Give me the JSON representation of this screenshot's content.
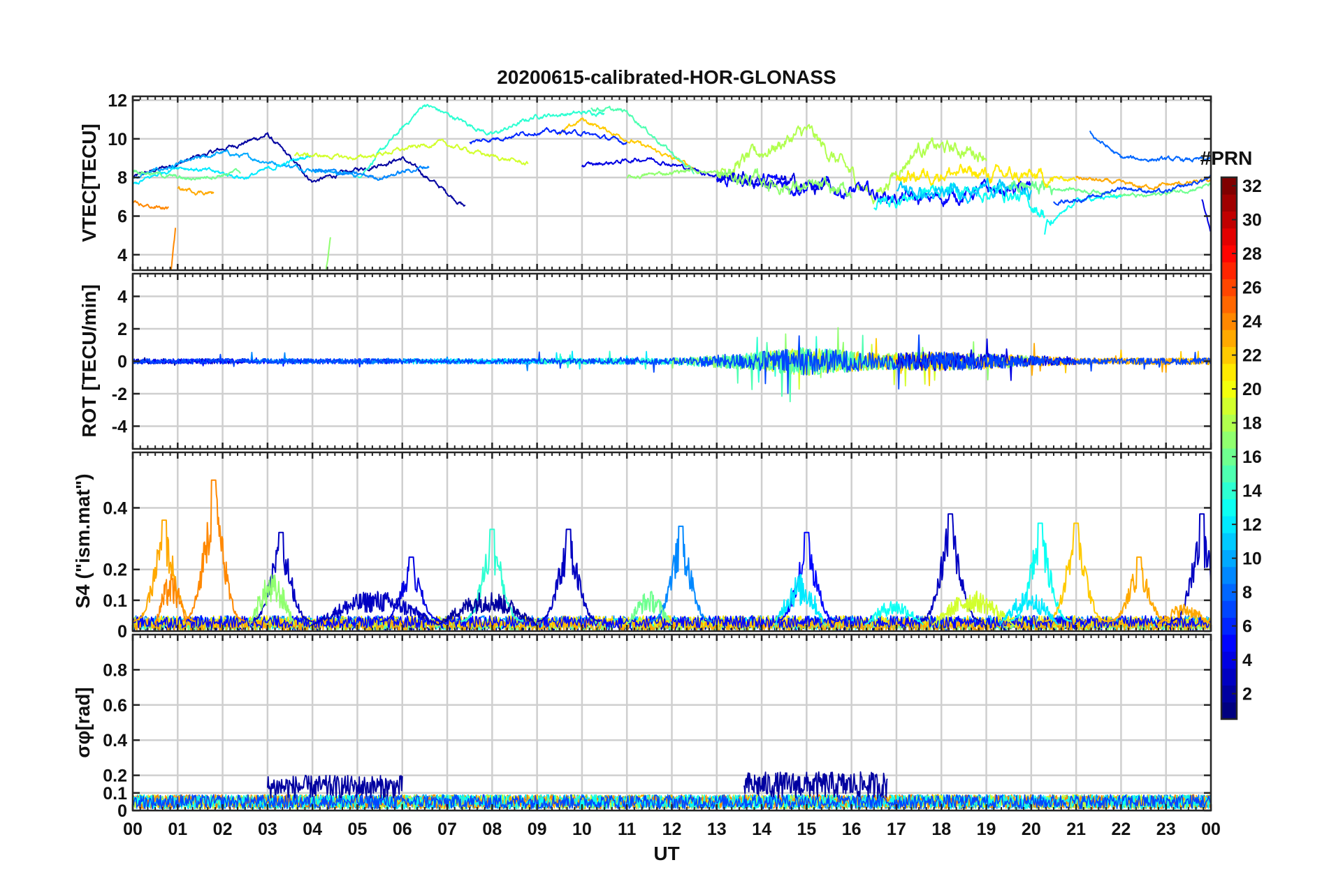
{
  "title": "20200615-calibrated-HOR-GLONASS",
  "xlabel": "UT",
  "x_tick_labels": [
    "00",
    "01",
    "02",
    "03",
    "04",
    "05",
    "06",
    "07",
    "08",
    "09",
    "10",
    "11",
    "12",
    "13",
    "14",
    "15",
    "16",
    "17",
    "18",
    "19",
    "20",
    "21",
    "22",
    "23",
    "00"
  ],
  "colorbar": {
    "title": "#PRN",
    "range": [
      1,
      32
    ],
    "tick_labels": [
      "32",
      "30",
      "28",
      "26",
      "24",
      "22",
      "20",
      "18",
      "16",
      "14",
      "12",
      "10",
      "8",
      "6",
      "4",
      "2"
    ],
    "tick_values": [
      32,
      30,
      28,
      26,
      24,
      22,
      20,
      18,
      16,
      14,
      12,
      10,
      8,
      6,
      4,
      2
    ],
    "colormap": "jet",
    "levels": 32
  },
  "chart_data": [
    {
      "type": "line",
      "panel": "VTEC",
      "ylabel": "VTEC[TECU]",
      "xlim": [
        0,
        24
      ],
      "ylim": [
        3.2,
        12.2
      ],
      "y_tick_values": [
        4,
        6,
        8,
        10,
        12
      ],
      "y_tick_labels": [
        "4",
        "6",
        "8",
        "10",
        "12"
      ],
      "grid": true,
      "series_mode": "per-PRN multi-colored traces, approx. values",
      "approx_series": [
        {
          "prn": 2,
          "x": [
            0,
            3,
            4,
            6,
            7.4
          ],
          "y": [
            8.0,
            10.2,
            7.8,
            9.0,
            6.5
          ]
        },
        {
          "prn": 10,
          "x": [
            0,
            2,
            3.5,
            5
          ],
          "y": [
            8.0,
            9.3,
            8.6,
            8.1
          ]
        },
        {
          "prn": 14,
          "x": [
            5,
            6.5,
            8,
            9,
            10.5
          ],
          "y": [
            8.0,
            11.8,
            10.2,
            11.2,
            11.4
          ]
        },
        {
          "prn": 18,
          "x": [
            13,
            15,
            16.5,
            17.5,
            19
          ],
          "y": [
            8.2,
            10.4,
            7.0,
            9.6,
            9.3
          ]
        },
        {
          "prn": 22,
          "x": [
            9.5,
            10,
            12.5
          ],
          "y": [
            10.2,
            11.0,
            8.5
          ]
        },
        {
          "prn": 5,
          "x": [
            13,
            15,
            17.5,
            19,
            20
          ],
          "y": [
            8.0,
            7.6,
            6.8,
            7.3,
            7.4
          ]
        },
        {
          "prn": 23,
          "x": [
            21,
            22.5,
            24
          ],
          "y": [
            8.0,
            7.5,
            7.8
          ]
        },
        {
          "prn": 8,
          "x": [
            21.3,
            22,
            23.3,
            24
          ],
          "y": [
            10.3,
            9.0,
            8.9,
            8.9
          ]
        }
      ]
    },
    {
      "type": "line",
      "panel": "ROT",
      "ylabel": "ROT [TECU/min]",
      "xlim": [
        0,
        24
      ],
      "ylim": [
        -5.4,
        5.4
      ],
      "y_tick_values": [
        -4,
        -2,
        0,
        2,
        4
      ],
      "y_tick_labels": [
        "-4",
        "-2",
        "0",
        "2",
        "4"
      ],
      "grid": true,
      "series_mode": "per-PRN multi-colored traces, approx. values",
      "approx_envelope": {
        "x": [
          0,
          4,
          8,
          12,
          13.5,
          15,
          16.5,
          18,
          19,
          21,
          24
        ],
        "amp": [
          0.4,
          0.4,
          0.4,
          0.5,
          1.2,
          2.2,
          1.3,
          1.5,
          1.2,
          0.5,
          0.5
        ]
      }
    },
    {
      "type": "line",
      "panel": "S4",
      "ylabel": "S4 (\"ism.mat\")",
      "xlim": [
        0,
        24
      ],
      "ylim": [
        0,
        0.58
      ],
      "y_tick_values": [
        0,
        0.1,
        0.2,
        0.4
      ],
      "y_tick_labels": [
        "0",
        "0.1",
        "0.2",
        "0.4"
      ],
      "grid": true,
      "series_mode": "per-PRN multi-colored traces, approx. values",
      "approx_peaks": [
        {
          "x": 0.7,
          "y": 0.36,
          "prn": 23
        },
        {
          "x": 1.8,
          "y": 0.49,
          "prn": 24
        },
        {
          "x": 3.3,
          "y": 0.32,
          "prn": 3
        },
        {
          "x": 6.2,
          "y": 0.24,
          "prn": 4
        },
        {
          "x": 8.0,
          "y": 0.33,
          "prn": 14
        },
        {
          "x": 9.7,
          "y": 0.33,
          "prn": 3
        },
        {
          "x": 12.2,
          "y": 0.34,
          "prn": 9
        },
        {
          "x": 15.0,
          "y": 0.32,
          "prn": 5
        },
        {
          "x": 18.2,
          "y": 0.38,
          "prn": 3
        },
        {
          "x": 20.2,
          "y": 0.35,
          "prn": 13
        },
        {
          "x": 21.0,
          "y": 0.35,
          "prn": 22
        },
        {
          "x": 22.4,
          "y": 0.24,
          "prn": 23
        },
        {
          "x": 23.8,
          "y": 0.38,
          "prn": 3
        }
      ]
    },
    {
      "type": "line",
      "panel": "sigma_phi",
      "ylabel": "σφ[rad]",
      "xlim": [
        0,
        24
      ],
      "ylim": [
        0,
        1
      ],
      "y_tick_values": [
        0,
        0.1,
        0.2,
        0.4,
        0.6,
        0.8
      ],
      "y_tick_labels": [
        "0",
        "0.1",
        "0.2",
        "0.4",
        "0.6",
        "0.8"
      ],
      "grid": true,
      "series_mode": "per-PRN multi-colored traces, approx. values",
      "approx_levels": {
        "baseline": 0.05,
        "peak_windows": [
          {
            "x": [
              3,
              6
            ],
            "y": 0.2
          },
          {
            "x": [
              13.6,
              16.8
            ],
            "y": 0.22
          }
        ]
      }
    }
  ]
}
